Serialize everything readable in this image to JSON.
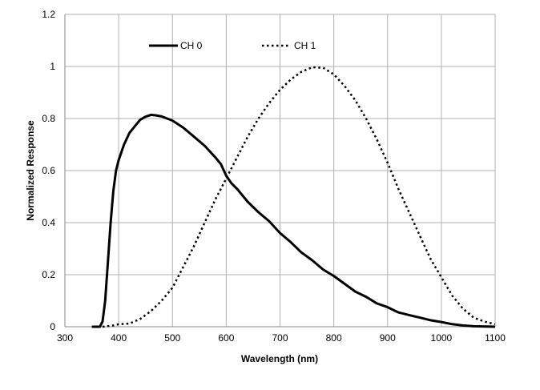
{
  "chart_data": {
    "type": "line",
    "xlabel": "Wavelength (nm)",
    "ylabel": "Normalized Response",
    "xlim": [
      300,
      1100
    ],
    "ylim": [
      0,
      1.2
    ],
    "xticks": [
      "300",
      "400",
      "500",
      "600",
      "700",
      "800",
      "900",
      "1000",
      "1100"
    ],
    "yticks": [
      "0",
      "0.2",
      "0.4",
      "0.6",
      "0.8",
      "1",
      "1.2"
    ],
    "grid": true,
    "legend_placement": "top",
    "series": [
      {
        "name": "CH 0",
        "style": "solid",
        "color": "#000000",
        "x": [
          350,
          365,
          370,
          375,
          380,
          385,
          390,
          395,
          400,
          410,
          420,
          430,
          440,
          450,
          460,
          470,
          480,
          490,
          500,
          520,
          540,
          560,
          580,
          590,
          600,
          610,
          620,
          640,
          660,
          680,
          700,
          720,
          740,
          760,
          780,
          800,
          820,
          840,
          860,
          880,
          900,
          920,
          940,
          960,
          980,
          1000,
          1020,
          1040,
          1060,
          1100
        ],
        "y": [
          0,
          0,
          0.02,
          0.1,
          0.25,
          0.4,
          0.52,
          0.6,
          0.64,
          0.7,
          0.745,
          0.77,
          0.795,
          0.807,
          0.814,
          0.812,
          0.808,
          0.8,
          0.792,
          0.765,
          0.73,
          0.695,
          0.65,
          0.625,
          0.58,
          0.55,
          0.53,
          0.48,
          0.44,
          0.405,
          0.36,
          0.325,
          0.285,
          0.255,
          0.22,
          0.195,
          0.165,
          0.135,
          0.115,
          0.09,
          0.075,
          0.055,
          0.045,
          0.035,
          0.025,
          0.018,
          0.01,
          0.005,
          0.002,
          0
        ]
      },
      {
        "name": "CH 1",
        "style": "dotted",
        "color": "#000000",
        "x": [
          370,
          390,
          400,
          420,
          440,
          460,
          480,
          500,
          520,
          540,
          560,
          580,
          600,
          620,
          640,
          660,
          680,
          700,
          720,
          740,
          760,
          780,
          800,
          820,
          840,
          860,
          880,
          900,
          920,
          940,
          960,
          980,
          1000,
          1020,
          1040,
          1060,
          1080,
          1100
        ],
        "y": [
          0,
          0.005,
          0.01,
          0.012,
          0.03,
          0.06,
          0.1,
          0.15,
          0.23,
          0.31,
          0.4,
          0.49,
          0.57,
          0.65,
          0.73,
          0.8,
          0.86,
          0.91,
          0.95,
          0.98,
          0.997,
          0.995,
          0.97,
          0.925,
          0.87,
          0.8,
          0.72,
          0.63,
          0.53,
          0.44,
          0.35,
          0.26,
          0.19,
          0.12,
          0.07,
          0.035,
          0.02,
          0.01
        ]
      }
    ]
  }
}
